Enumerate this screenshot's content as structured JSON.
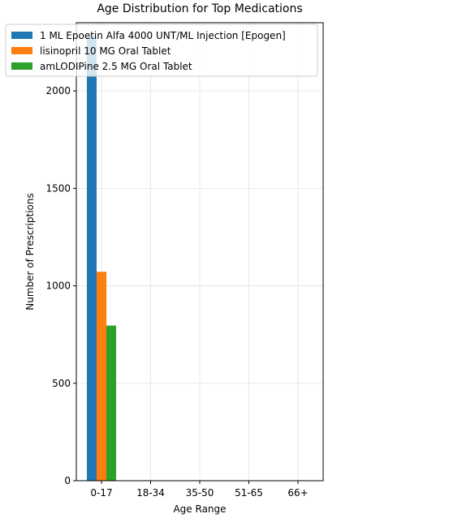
{
  "chart_data": {
    "type": "bar",
    "title": "Age Distribution for Top Medications",
    "xlabel": "Age Range",
    "ylabel": "Number of Prescriptions",
    "categories": [
      "0-17",
      "18-34",
      "35-50",
      "51-65",
      "66+"
    ],
    "series": [
      {
        "name": "1 ML Epoetin Alfa 4000 UNT/ML Injection [Epogen]",
        "color": "#1f77b4",
        "values": [
          2280,
          0,
          0,
          0,
          0
        ]
      },
      {
        "name": "lisinopril 10 MG Oral Tablet",
        "color": "#ff7f0e",
        "values": [
          1072,
          0,
          0,
          0,
          0
        ]
      },
      {
        "name": "amLODIPine 2.5 MG Oral Tablet",
        "color": "#2ca02c",
        "values": [
          796,
          0,
          0,
          0,
          0
        ]
      }
    ],
    "ylim": [
      0,
      2350
    ],
    "yticks": [
      0,
      500,
      1000,
      1500,
      2000
    ],
    "grid": true,
    "legend_position": "top-left"
  }
}
